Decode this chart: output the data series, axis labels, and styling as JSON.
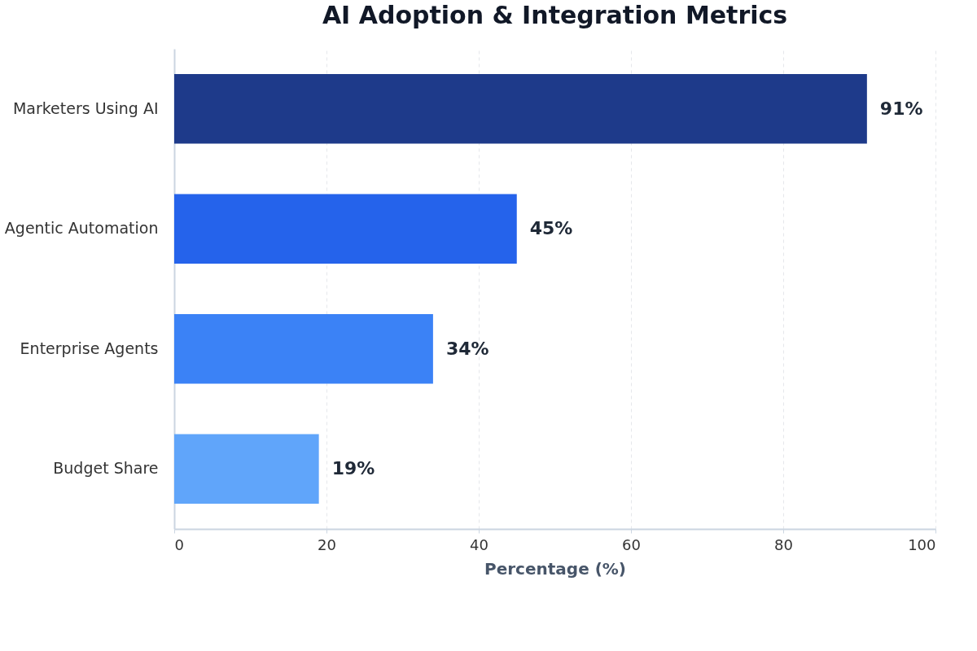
{
  "chart_data": {
    "type": "bar",
    "orientation": "horizontal",
    "title": "AI Adoption & Integration Metrics",
    "xlabel": "Percentage (%)",
    "categories": [
      "Marketers Using AI",
      "Agentic Automation",
      "Enterprise Agents",
      "Budget Share"
    ],
    "values": [
      91,
      45,
      34,
      19
    ],
    "colors": [
      "#1e3a8a",
      "#2563eb",
      "#3b82f6",
      "#60a5fa"
    ],
    "value_labels": [
      "91%",
      "45%",
      "34%",
      "19%"
    ],
    "xlim": [
      0,
      100
    ],
    "xticks": [
      0,
      20,
      40,
      60,
      80,
      100
    ],
    "grid": "x",
    "legend": false
  }
}
